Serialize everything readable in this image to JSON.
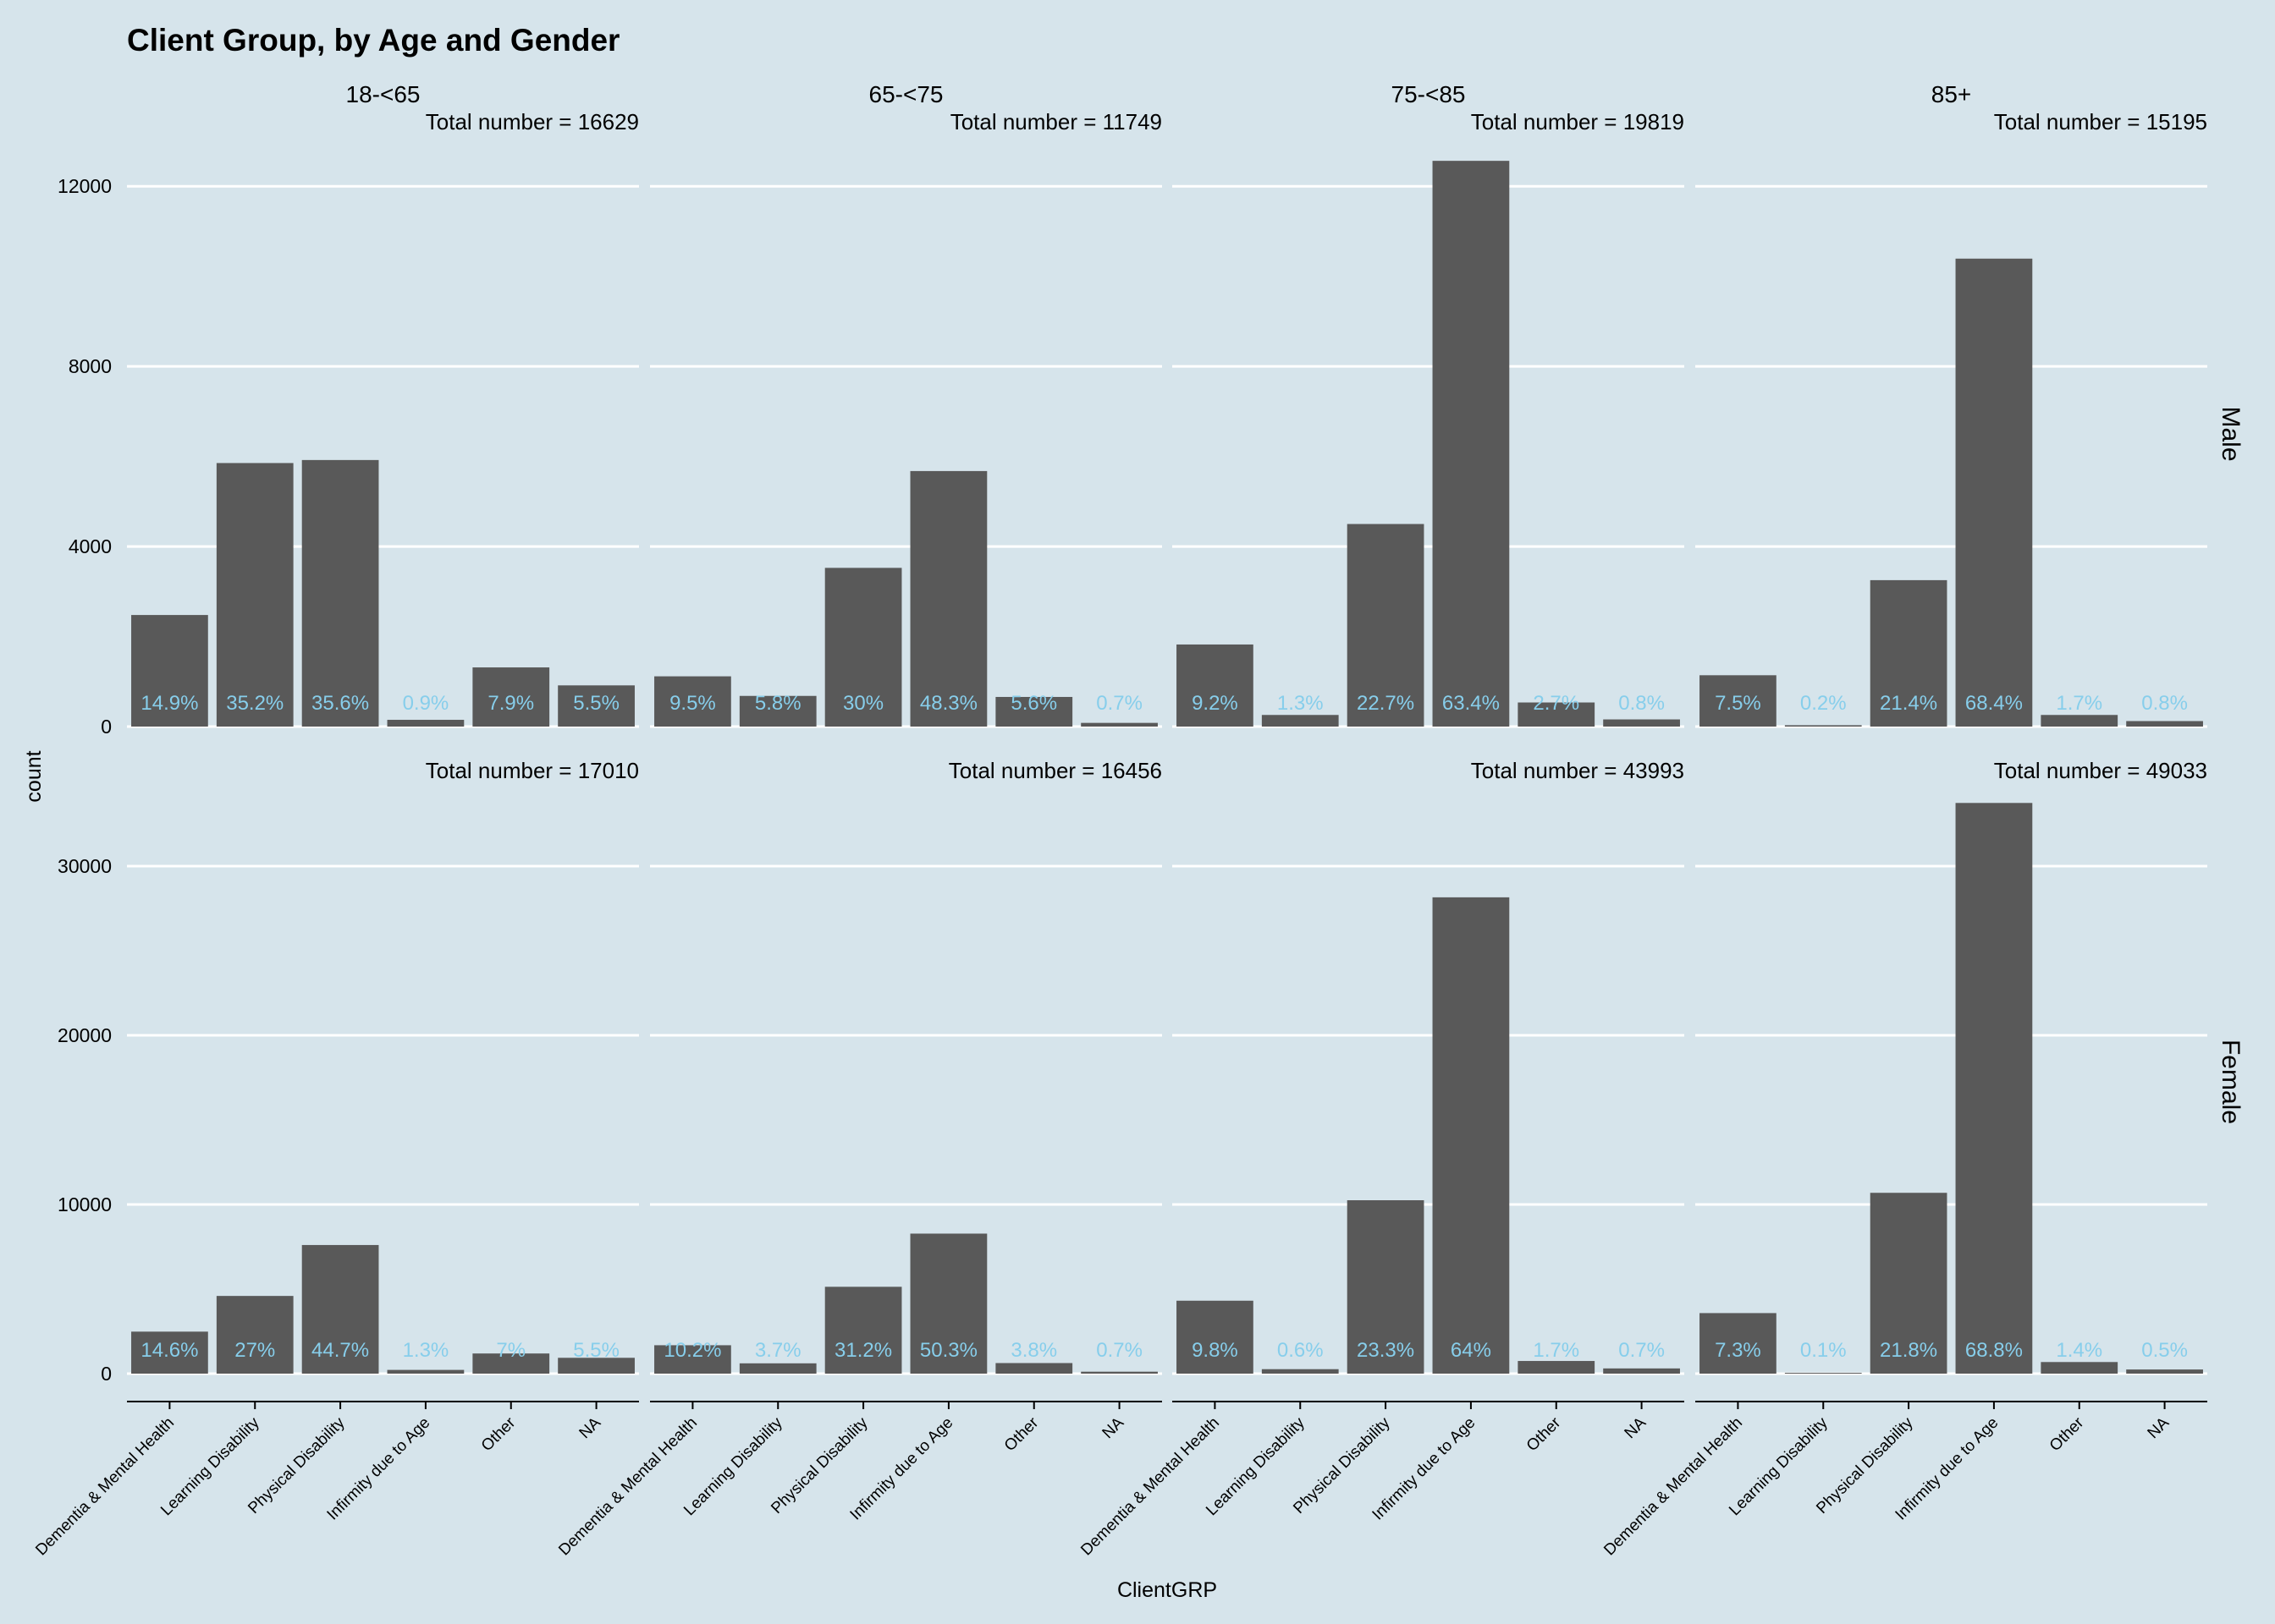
{
  "chart_data": {
    "type": "bar",
    "title": "Client Group, by Age and Gender",
    "xlabel": "ClientGRP",
    "ylabel": "count",
    "categories": [
      "Dementia & Mental Health",
      "Learning Disability",
      "Physical Disability",
      "Infirmity due to Age",
      "Other",
      "NA"
    ],
    "columns": [
      "18-<65",
      "65-<75",
      "75-<85",
      "85+"
    ],
    "rows": [
      {
        "name": "Male",
        "yticks": [
          0,
          4000,
          8000,
          12000
        ],
        "ylim": [
          0,
          13000
        ],
        "panels": [
          {
            "total_label": "Total number = 16629",
            "values": [
              2478,
              5853,
              5920,
              150,
              1314,
              915
            ],
            "labels": [
              "14.9%",
              "35.2%",
              "35.6%",
              "0.9%",
              "7.9%",
              "5.5%"
            ]
          },
          {
            "total_label": "Total number = 11749",
            "values": [
              1116,
              681,
              3525,
              5675,
              658,
              82
            ],
            "labels": [
              "9.5%",
              "5.8%",
              "30%",
              "48.3%",
              "5.6%",
              "0.7%"
            ]
          },
          {
            "total_label": "Total number = 19819",
            "values": [
              1823,
              258,
              4499,
              12565,
              535,
              159
            ],
            "labels": [
              "9.2%",
              "1.3%",
              "22.7%",
              "63.4%",
              "2.7%",
              "0.8%"
            ]
          },
          {
            "total_label": "Total number = 15195",
            "values": [
              1140,
              30,
              3252,
              10393,
              258,
              122
            ],
            "labels": [
              "7.5%",
              "0.2%",
              "21.4%",
              "68.4%",
              "1.7%",
              "0.8%"
            ]
          }
        ]
      },
      {
        "name": "Female",
        "yticks": [
          0,
          10000,
          20000,
          30000
        ],
        "ylim": [
          0,
          34500
        ],
        "panels": [
          {
            "total_label": "Total number = 17010",
            "values": [
              2483,
              4593,
              7603,
              221,
              1191,
              936
            ],
            "labels": [
              "14.6%",
              "27%",
              "44.7%",
              "1.3%",
              "7%",
              "5.5%"
            ]
          },
          {
            "total_label": "Total number = 16456",
            "values": [
              1679,
              609,
              5134,
              8277,
              625,
              115
            ],
            "labels": [
              "10.2%",
              "3.7%",
              "31.2%",
              "50.3%",
              "3.8%",
              "0.7%"
            ]
          },
          {
            "total_label": "Total number = 43993",
            "values": [
              4311,
              264,
              10250,
              28156,
              748,
              308
            ],
            "labels": [
              "9.8%",
              "0.6%",
              "23.3%",
              "64%",
              "1.7%",
              "0.7%"
            ]
          },
          {
            "total_label": "Total number = 49033",
            "values": [
              3579,
              49,
              10689,
              33735,
              686,
              245
            ],
            "labels": [
              "7.3%",
              "0.1%",
              "21.8%",
              "68.8%",
              "1.4%",
              "0.5%"
            ]
          }
        ]
      }
    ],
    "colors": {
      "background": "#d6e4eb",
      "bar": "#595959",
      "grid": "#ffffff",
      "label_text": "#87ceeb",
      "text": "#000000"
    },
    "grid": true
  }
}
